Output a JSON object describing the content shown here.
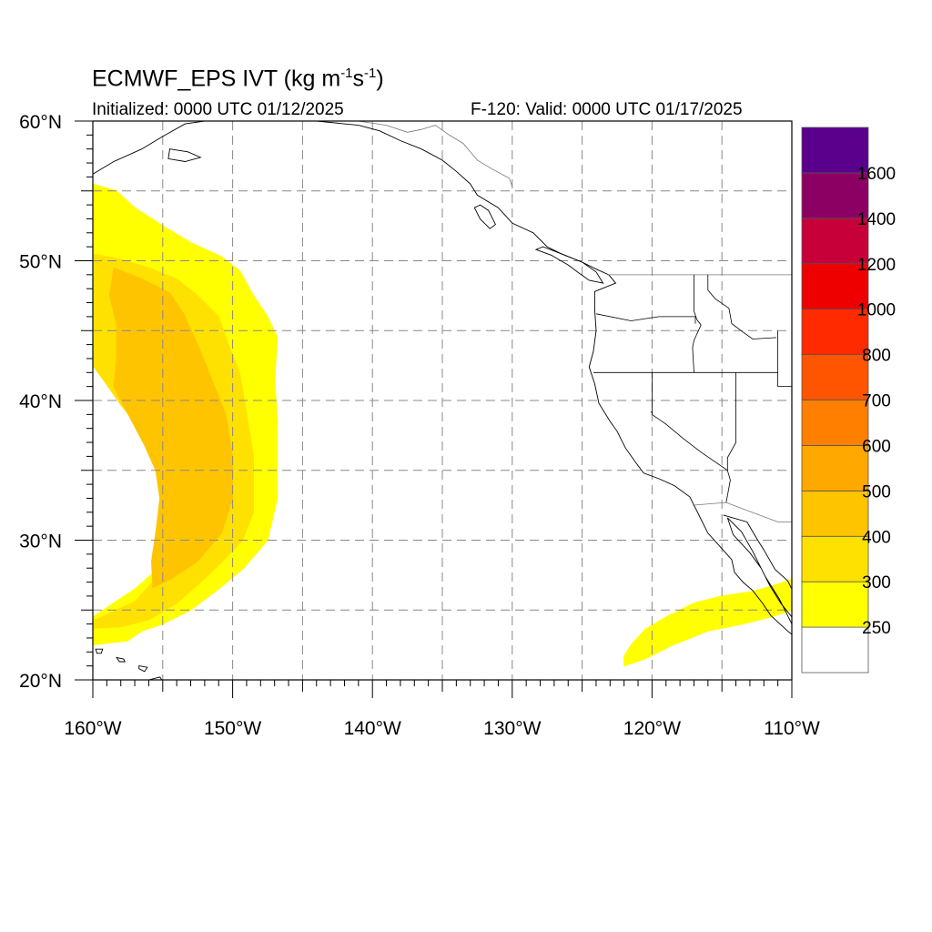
{
  "header": {
    "title_prefix": "ECMWF_EPS IVT (kg m",
    "title_sup1": "-1",
    "title_mid": "s",
    "title_sup2": "-1",
    "title_suffix": ")",
    "initialized": "Initialized: 0000 UTC 01/12/2025",
    "valid": "F-120: Valid: 0000 UTC 01/17/2025"
  },
  "map": {
    "lon_range": [
      -160,
      -110
    ],
    "lat_range": [
      20,
      60
    ],
    "x_ticks": [
      {
        "lon": -160,
        "label": "160°W"
      },
      {
        "lon": -150,
        "label": "150°W"
      },
      {
        "lon": -140,
        "label": "140°W"
      },
      {
        "lon": -130,
        "label": "130°W"
      },
      {
        "lon": -120,
        "label": "120°W"
      },
      {
        "lon": -110,
        "label": "110°W"
      }
    ],
    "y_ticks": [
      {
        "lat": 60,
        "label": "60°N"
      },
      {
        "lat": 50,
        "label": "50°N"
      },
      {
        "lat": 40,
        "label": "40°N"
      },
      {
        "lat": 30,
        "label": "30°N"
      },
      {
        "lat": 20,
        "label": "20°N"
      }
    ],
    "grid_lons": [
      -155,
      -150,
      -145,
      -140,
      -135,
      -130,
      -125,
      -120,
      -115
    ],
    "grid_lats": [
      25,
      30,
      35,
      40,
      45,
      50,
      55
    ]
  },
  "colorbar": {
    "colors": [
      "#ffffff",
      "#ffff00",
      "#ffe100",
      "#ffc400",
      "#ffa800",
      "#ff8000",
      "#ff5500",
      "#ff2a00",
      "#ee0000",
      "#c8003a",
      "#8c0064",
      "#5a008c"
    ],
    "labels": [
      "250",
      "300",
      "400",
      "500",
      "600",
      "700",
      "800",
      "1000",
      "1200",
      "1400",
      "1600"
    ]
  },
  "ivt_field": {
    "description_levels": [
      250,
      300,
      400
    ],
    "west_plume": {
      "outer_250": [
        [
          -160,
          55.5
        ],
        [
          -158.3,
          55
        ],
        [
          -157,
          53.8
        ],
        [
          -155,
          52.5
        ],
        [
          -153,
          51.3
        ],
        [
          -150.8,
          50.3
        ],
        [
          -149.5,
          49.3
        ],
        [
          -148.5,
          47.5
        ],
        [
          -147.5,
          46
        ],
        [
          -146.8,
          44.5
        ],
        [
          -147,
          41.5
        ],
        [
          -146.8,
          38.5
        ],
        [
          -146.8,
          33
        ],
        [
          -147.5,
          30
        ],
        [
          -149.2,
          28
        ],
        [
          -151,
          26.5
        ],
        [
          -153,
          25
        ],
        [
          -155,
          24
        ],
        [
          -156.5,
          23.5
        ],
        [
          -157.5,
          22.8
        ],
        [
          -160,
          22.5
        ],
        [
          -160,
          24.5
        ],
        [
          -158.5,
          25.5
        ],
        [
          -157,
          26.5
        ],
        [
          -155.3,
          28
        ],
        [
          -154.5,
          30
        ],
        [
          -154.2,
          32
        ],
        [
          -154,
          34
        ],
        [
          -154.5,
          36
        ],
        [
          -155.2,
          37.5
        ],
        [
          -156.3,
          39
        ],
        [
          -157.5,
          40.5
        ],
        [
          -158.5,
          42
        ],
        [
          -159.5,
          43.5
        ],
        [
          -160,
          44.5
        ]
      ],
      "inner_300": [
        [
          -160,
          50.5
        ],
        [
          -158,
          50.1
        ],
        [
          -156,
          49.5
        ],
        [
          -154,
          48.7
        ],
        [
          -152.5,
          47.5
        ],
        [
          -151,
          46
        ],
        [
          -150.3,
          44
        ],
        [
          -149.5,
          42
        ],
        [
          -149,
          39
        ],
        [
          -148.5,
          36
        ],
        [
          -148.5,
          32
        ],
        [
          -149.3,
          30
        ],
        [
          -151,
          28.2
        ],
        [
          -152.5,
          26.8
        ],
        [
          -154,
          25.5
        ],
        [
          -156,
          24.3
        ],
        [
          -158,
          23.8
        ],
        [
          -160,
          23.7
        ],
        [
          -160,
          24.2
        ],
        [
          -157,
          25.6
        ],
        [
          -155.7,
          27
        ],
        [
          -155.2,
          29
        ],
        [
          -155,
          31.5
        ],
        [
          -154.8,
          34
        ],
        [
          -155.5,
          36
        ],
        [
          -156.5,
          37.8
        ],
        [
          -158,
          39.7
        ],
        [
          -159.2,
          41.4
        ],
        [
          -160,
          42.5
        ]
      ],
      "core_400": [
        [
          -158.5,
          49.5
        ],
        [
          -156.5,
          48.7
        ],
        [
          -154.5,
          47.7
        ],
        [
          -153.5,
          46.2
        ],
        [
          -152.5,
          44
        ],
        [
          -151.5,
          41.5
        ],
        [
          -150.5,
          39
        ],
        [
          -150,
          36
        ],
        [
          -150,
          33
        ],
        [
          -150.8,
          30.5
        ],
        [
          -152.5,
          28.5
        ],
        [
          -154.3,
          27.3
        ],
        [
          -155.7,
          26.6
        ],
        [
          -155.8,
          28.5
        ],
        [
          -155.5,
          30.5
        ],
        [
          -155.2,
          33
        ],
        [
          -155.5,
          35
        ],
        [
          -156.3,
          36.8
        ],
        [
          -157.2,
          38.5
        ],
        [
          -158,
          40
        ],
        [
          -158.5,
          41
        ],
        [
          -158.3,
          43
        ],
        [
          -158.3,
          45.5
        ],
        [
          -158.8,
          47.5
        ]
      ]
    },
    "east_plume": {
      "outer_250": [
        [
          -122,
          21
        ],
        [
          -120.5,
          21.5
        ],
        [
          -118.5,
          22.5
        ],
        [
          -116,
          23.5
        ],
        [
          -113.5,
          24
        ],
        [
          -111.5,
          24.5
        ],
        [
          -110,
          25
        ],
        [
          -110,
          27.2
        ],
        [
          -111.5,
          26.7
        ],
        [
          -113,
          26.3
        ],
        [
          -115,
          26
        ],
        [
          -117,
          25.5
        ],
        [
          -119,
          24.5
        ],
        [
          -120.5,
          23.6
        ],
        [
          -121.5,
          22.5
        ],
        [
          -122,
          21.7
        ]
      ]
    }
  },
  "coastline": {
    "north_america": [
      [
        -160,
        56.2
      ],
      [
        -158.5,
        57.1
      ],
      [
        -156.5,
        58
      ],
      [
        -155,
        58.9
      ],
      [
        -153.4,
        59.8
      ],
      [
        -152,
        60
      ],
      [
        -149,
        60
      ],
      [
        -147,
        60
      ],
      [
        -146,
        60
      ],
      [
        -145,
        60.1
      ],
      [
        -143,
        59.9
      ],
      [
        -141,
        59.7
      ],
      [
        -139.5,
        59.3
      ],
      [
        -138,
        58.6
      ],
      [
        -136.5,
        58
      ],
      [
        -135,
        57.2
      ],
      [
        -134,
        56.4
      ],
      [
        -133,
        55.5
      ],
      [
        -132.5,
        54.7
      ],
      [
        -131,
        53.8
      ],
      [
        -130,
        52.7
      ],
      [
        -128.5,
        52
      ],
      [
        -127.5,
        51
      ],
      [
        -126.5,
        50.5
      ],
      [
        -125,
        49.9
      ],
      [
        -124,
        49.4
      ],
      [
        -123.1,
        49
      ],
      [
        -122.6,
        48.4
      ],
      [
        -124.1,
        47.8
      ],
      [
        -124.1,
        46.5
      ],
      [
        -124,
        45
      ],
      [
        -124.2,
        43.5
      ],
      [
        -124.5,
        42.4
      ],
      [
        -124.1,
        41.2
      ],
      [
        -123.8,
        39.8
      ],
      [
        -123,
        38.5
      ],
      [
        -122.5,
        37.8
      ],
      [
        -121.9,
        36.6
      ],
      [
        -121.2,
        35.6
      ],
      [
        -120.6,
        34.8
      ],
      [
        -119.5,
        34.4
      ],
      [
        -118.4,
        33.9
      ],
      [
        -117.3,
        33.1
      ],
      [
        -117,
        32.5
      ],
      [
        -116.5,
        31.5
      ],
      [
        -116,
        30.5
      ],
      [
        -115.1,
        29.5
      ],
      [
        -114.3,
        28.6
      ],
      [
        -114.1,
        27.7
      ],
      [
        -113.5,
        27
      ],
      [
        -112.8,
        26.4
      ],
      [
        -112.1,
        25.5
      ],
      [
        -111.5,
        24.6
      ],
      [
        -110.3,
        23.5
      ],
      [
        -109.8,
        23.1
      ],
      [
        -110,
        24
      ],
      [
        -110.9,
        25.8
      ],
      [
        -111.9,
        27.4
      ],
      [
        -112.8,
        29.2
      ],
      [
        -113.6,
        30.6
      ],
      [
        -114.6,
        31.6
      ],
      [
        -114.2,
        30.4
      ],
      [
        -113,
        29.1
      ],
      [
        -112.2,
        28
      ],
      [
        -111.6,
        26.8
      ],
      [
        -110.8,
        25.5
      ],
      [
        -110,
        24.5
      ]
    ],
    "mainland_gulf": [
      [
        -114.9,
        31.8
      ],
      [
        -113.2,
        31.3
      ],
      [
        -112.5,
        30.1
      ],
      [
        -112,
        29.3
      ],
      [
        -111.2,
        27.9
      ],
      [
        -110.3,
        27.1
      ],
      [
        -110,
        26.5
      ]
    ],
    "vancouver_island": [
      [
        -128.3,
        50.8
      ],
      [
        -127.2,
        50.4
      ],
      [
        -126,
        49.7
      ],
      [
        -125.2,
        49.1
      ],
      [
        -124.5,
        48.6
      ],
      [
        -123.5,
        48.4
      ],
      [
        -124,
        49.2
      ],
      [
        -125,
        49.9
      ],
      [
        -126.5,
        50.5
      ],
      [
        -127.8,
        51
      ]
    ],
    "haida_gwaii": [
      [
        -132.3,
        54
      ],
      [
        -131.7,
        53.6
      ],
      [
        -131.2,
        52.6
      ],
      [
        -131.6,
        52.3
      ],
      [
        -132.3,
        53
      ],
      [
        -132.7,
        53.8
      ]
    ],
    "kodiak": [
      [
        -154.5,
        58
      ],
      [
        -153.2,
        57.8
      ],
      [
        -152.3,
        57.4
      ],
      [
        -153.4,
        57.1
      ],
      [
        -154.6,
        57.3
      ]
    ],
    "hawaii_big": [
      [
        -156,
        20
      ],
      [
        -155.2,
        20.2
      ],
      [
        -154.8,
        19.6
      ],
      [
        -155.4,
        19.1
      ],
      [
        -156,
        19.5
      ]
    ],
    "hawaii_maui": [
      [
        -156.7,
        21
      ],
      [
        -156.1,
        20.9
      ],
      [
        -156.3,
        20.6
      ],
      [
        -156.7,
        20.8
      ]
    ],
    "hawaii_oahu": [
      [
        -158.3,
        21.6
      ],
      [
        -157.8,
        21.5
      ],
      [
        -157.7,
        21.3
      ],
      [
        -158.1,
        21.3
      ]
    ],
    "hawaii_kauai": [
      [
        -159.8,
        22.2
      ],
      [
        -159.3,
        22.2
      ],
      [
        -159.4,
        21.9
      ],
      [
        -159.7,
        21.9
      ]
    ]
  },
  "borders": {
    "canada_us": [
      [
        -123.2,
        49
      ],
      [
        -117,
        49
      ],
      [
        -110,
        49
      ]
    ],
    "alaska_bc": [
      [
        -141,
        60
      ],
      [
        -139,
        59.7
      ],
      [
        -137.5,
        59.2
      ],
      [
        -136.5,
        59.4
      ],
      [
        -135.5,
        59.7
      ],
      [
        -134.5,
        59
      ],
      [
        -133.5,
        58.4
      ],
      [
        -132.5,
        57.2
      ],
      [
        -131.5,
        56.6
      ],
      [
        -130.2,
        55.9
      ],
      [
        -130,
        55.3
      ]
    ],
    "wa_or": [
      [
        -124,
        46.2
      ],
      [
        -121.5,
        45.7
      ],
      [
        -119.5,
        46
      ],
      [
        -116.9,
        46
      ],
      [
        -116.9,
        45.5
      ]
    ],
    "wa_id": [
      [
        -117,
        49
      ],
      [
        -117,
        46.4
      ],
      [
        -116.8,
        45.8
      ]
    ],
    "or_id": [
      [
        -116.8,
        45.8
      ],
      [
        -116.5,
        45.4
      ],
      [
        -117,
        44.3
      ],
      [
        -117.1,
        43.8
      ],
      [
        -117,
        42
      ]
    ],
    "or_ca_nv": [
      [
        -124.2,
        42
      ],
      [
        -117,
        42
      ],
      [
        -111,
        42
      ]
    ],
    "id_mt": [
      [
        -116,
        49
      ],
      [
        -116,
        47.9
      ],
      [
        -115.5,
        47.3
      ],
      [
        -114.5,
        46.6
      ],
      [
        -114.3,
        45.5
      ],
      [
        -113.5,
        44.9
      ],
      [
        -112.8,
        44.4
      ],
      [
        -111.1,
        44.5
      ]
    ],
    "id_ut_nv": [
      [
        -114,
        42
      ],
      [
        -114,
        37
      ],
      [
        -114.6,
        35.9
      ],
      [
        -114.6,
        35
      ],
      [
        -114.4,
        34.3
      ],
      [
        -114.6,
        33.2
      ],
      [
        -114.7,
        32.7
      ]
    ],
    "ca_nv": [
      [
        -120,
        42
      ],
      [
        -120,
        39
      ],
      [
        -119,
        38.3
      ],
      [
        -117.8,
        37.3
      ],
      [
        -116.5,
        36.3
      ],
      [
        -114.6,
        35
      ]
    ],
    "az_nm": [
      [
        -109,
        37
      ],
      [
        -109,
        31.3
      ]
    ],
    "ut_co": [
      [
        -111,
        41
      ],
      [
        -109,
        41
      ],
      [
        -109,
        37
      ]
    ],
    "wy_border": [
      [
        -111,
        45
      ],
      [
        -111,
        41
      ]
    ],
    "us_mexico": [
      [
        -117.1,
        32.5
      ],
      [
        -114.7,
        32.7
      ],
      [
        -111,
        31.3
      ],
      [
        -108.2,
        31.3
      ]
    ],
    "tahoe": [
      [
        -120.1,
        39.2
      ],
      [
        -119.95,
        39.1
      ]
    ]
  }
}
